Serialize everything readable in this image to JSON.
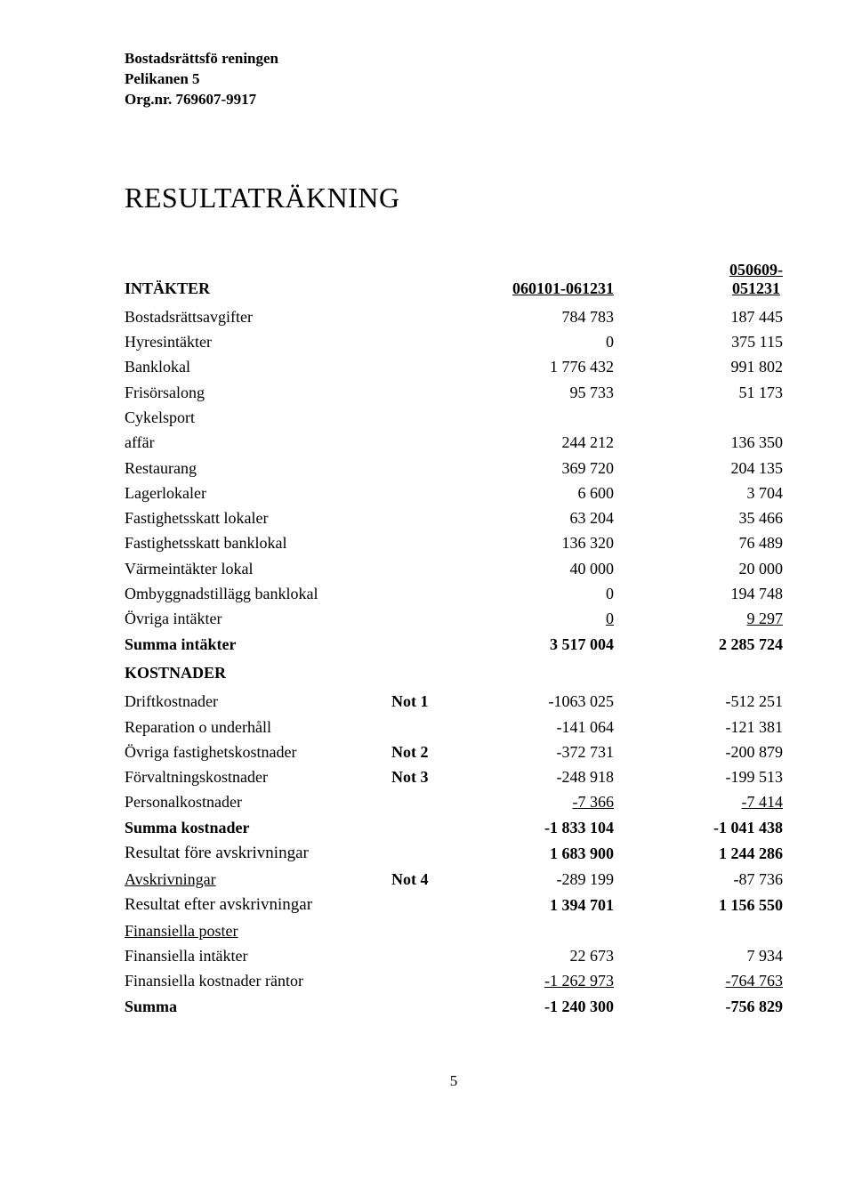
{
  "header": {
    "line1": "Bostadsrättsfö reningen",
    "line2": "Pelikanen 5",
    "line3": "Org.nr. 769607-9917"
  },
  "title": "RESULTATRÄKNING",
  "col_headers": {
    "label": "INTÄKTER",
    "period1": "060101-061231",
    "period2_top": "050609-",
    "period2_bottom": "051231"
  },
  "income_rows": [
    {
      "label": "Bostadsrättsavgifter",
      "c1": "784 783",
      "c2": "187 445"
    },
    {
      "label": "Hyresintäkter",
      "c1": "0",
      "c2": "375 115"
    },
    {
      "label": "Banklokal",
      "c1": "1 776 432",
      "c2": "991 802"
    },
    {
      "label": "Frisörsalong",
      "c1": "95 733",
      "c2": "51 173"
    },
    {
      "label": "Cykelsport",
      "c1": "",
      "c2": ""
    },
    {
      "label": "affär",
      "c1": "244 212",
      "c2": "136 350"
    },
    {
      "label": "Restaurang",
      "c1": "369 720",
      "c2": "204 135"
    },
    {
      "label": "Lagerlokaler",
      "c1": "6 600",
      "c2": "3 704"
    },
    {
      "label": "Fastighetsskatt lokaler",
      "c1": "63 204",
      "c2": "35 466"
    },
    {
      "label": "Fastighetsskatt banklokal",
      "c1": "136 320",
      "c2": "76 489"
    },
    {
      "label": "Värmeintäkter lokal",
      "c1": "40 000",
      "c2": "20 000"
    },
    {
      "label": "Ombyggnadstillägg banklokal",
      "c1": "0",
      "c2": "194 748"
    },
    {
      "label": "Övriga intäkter",
      "c1": "0",
      "c2": "9 297",
      "underline": true
    }
  ],
  "income_total": {
    "label": "Summa intäkter",
    "c1": "3 517 004",
    "c2": "2 285 724"
  },
  "costs_header": "KOSTNADER",
  "cost_rows": [
    {
      "label": "Driftkostnader",
      "note": "Not 1",
      "c1": "-1063 025",
      "c2": "-512 251"
    },
    {
      "label": "Reparation o underhåll",
      "note": "",
      "c1": "-141 064",
      "c2": "-121 381"
    },
    {
      "label": "Övriga fastighetskostnader",
      "note": "Not 2",
      "c1": "-372 731",
      "c2": "-200 879"
    },
    {
      "label": "Förvaltningskostnader",
      "note": "Not 3",
      "c1": "-248 918",
      "c2": "-199 513"
    },
    {
      "label": "Personalkostnader",
      "note": "",
      "c1": "-7 366",
      "c2": "-7 414",
      "underline": true
    }
  ],
  "cost_total": {
    "label": "Summa kostnader",
    "c1": "-1 833 104",
    "c2": "-1 041 438"
  },
  "result_before_dep": {
    "label": "Resultat före avskrivningar",
    "c1": "1 683 900",
    "c2": "1 244 286"
  },
  "depreciation": {
    "label": "Avskrivningar",
    "note": "Not 4",
    "c1": "-289 199",
    "c2": "-87 736"
  },
  "result_after_dep": {
    "label": "Resultat efter avskrivningar",
    "c1": "1 394 701",
    "c2": "1 156 550"
  },
  "fin_header": "Finansiella poster",
  "fin_rows": [
    {
      "label": "Finansiella intäkter",
      "c1": "22 673",
      "c2": "7 934"
    },
    {
      "label": "Finansiella kostnader räntor",
      "c1": "-1 262 973",
      "c2": "-764 763",
      "underline": true
    }
  ],
  "fin_total": {
    "label": "Summa",
    "c1": "-1 240 300",
    "c2": "-756 829"
  },
  "page_number": "5"
}
